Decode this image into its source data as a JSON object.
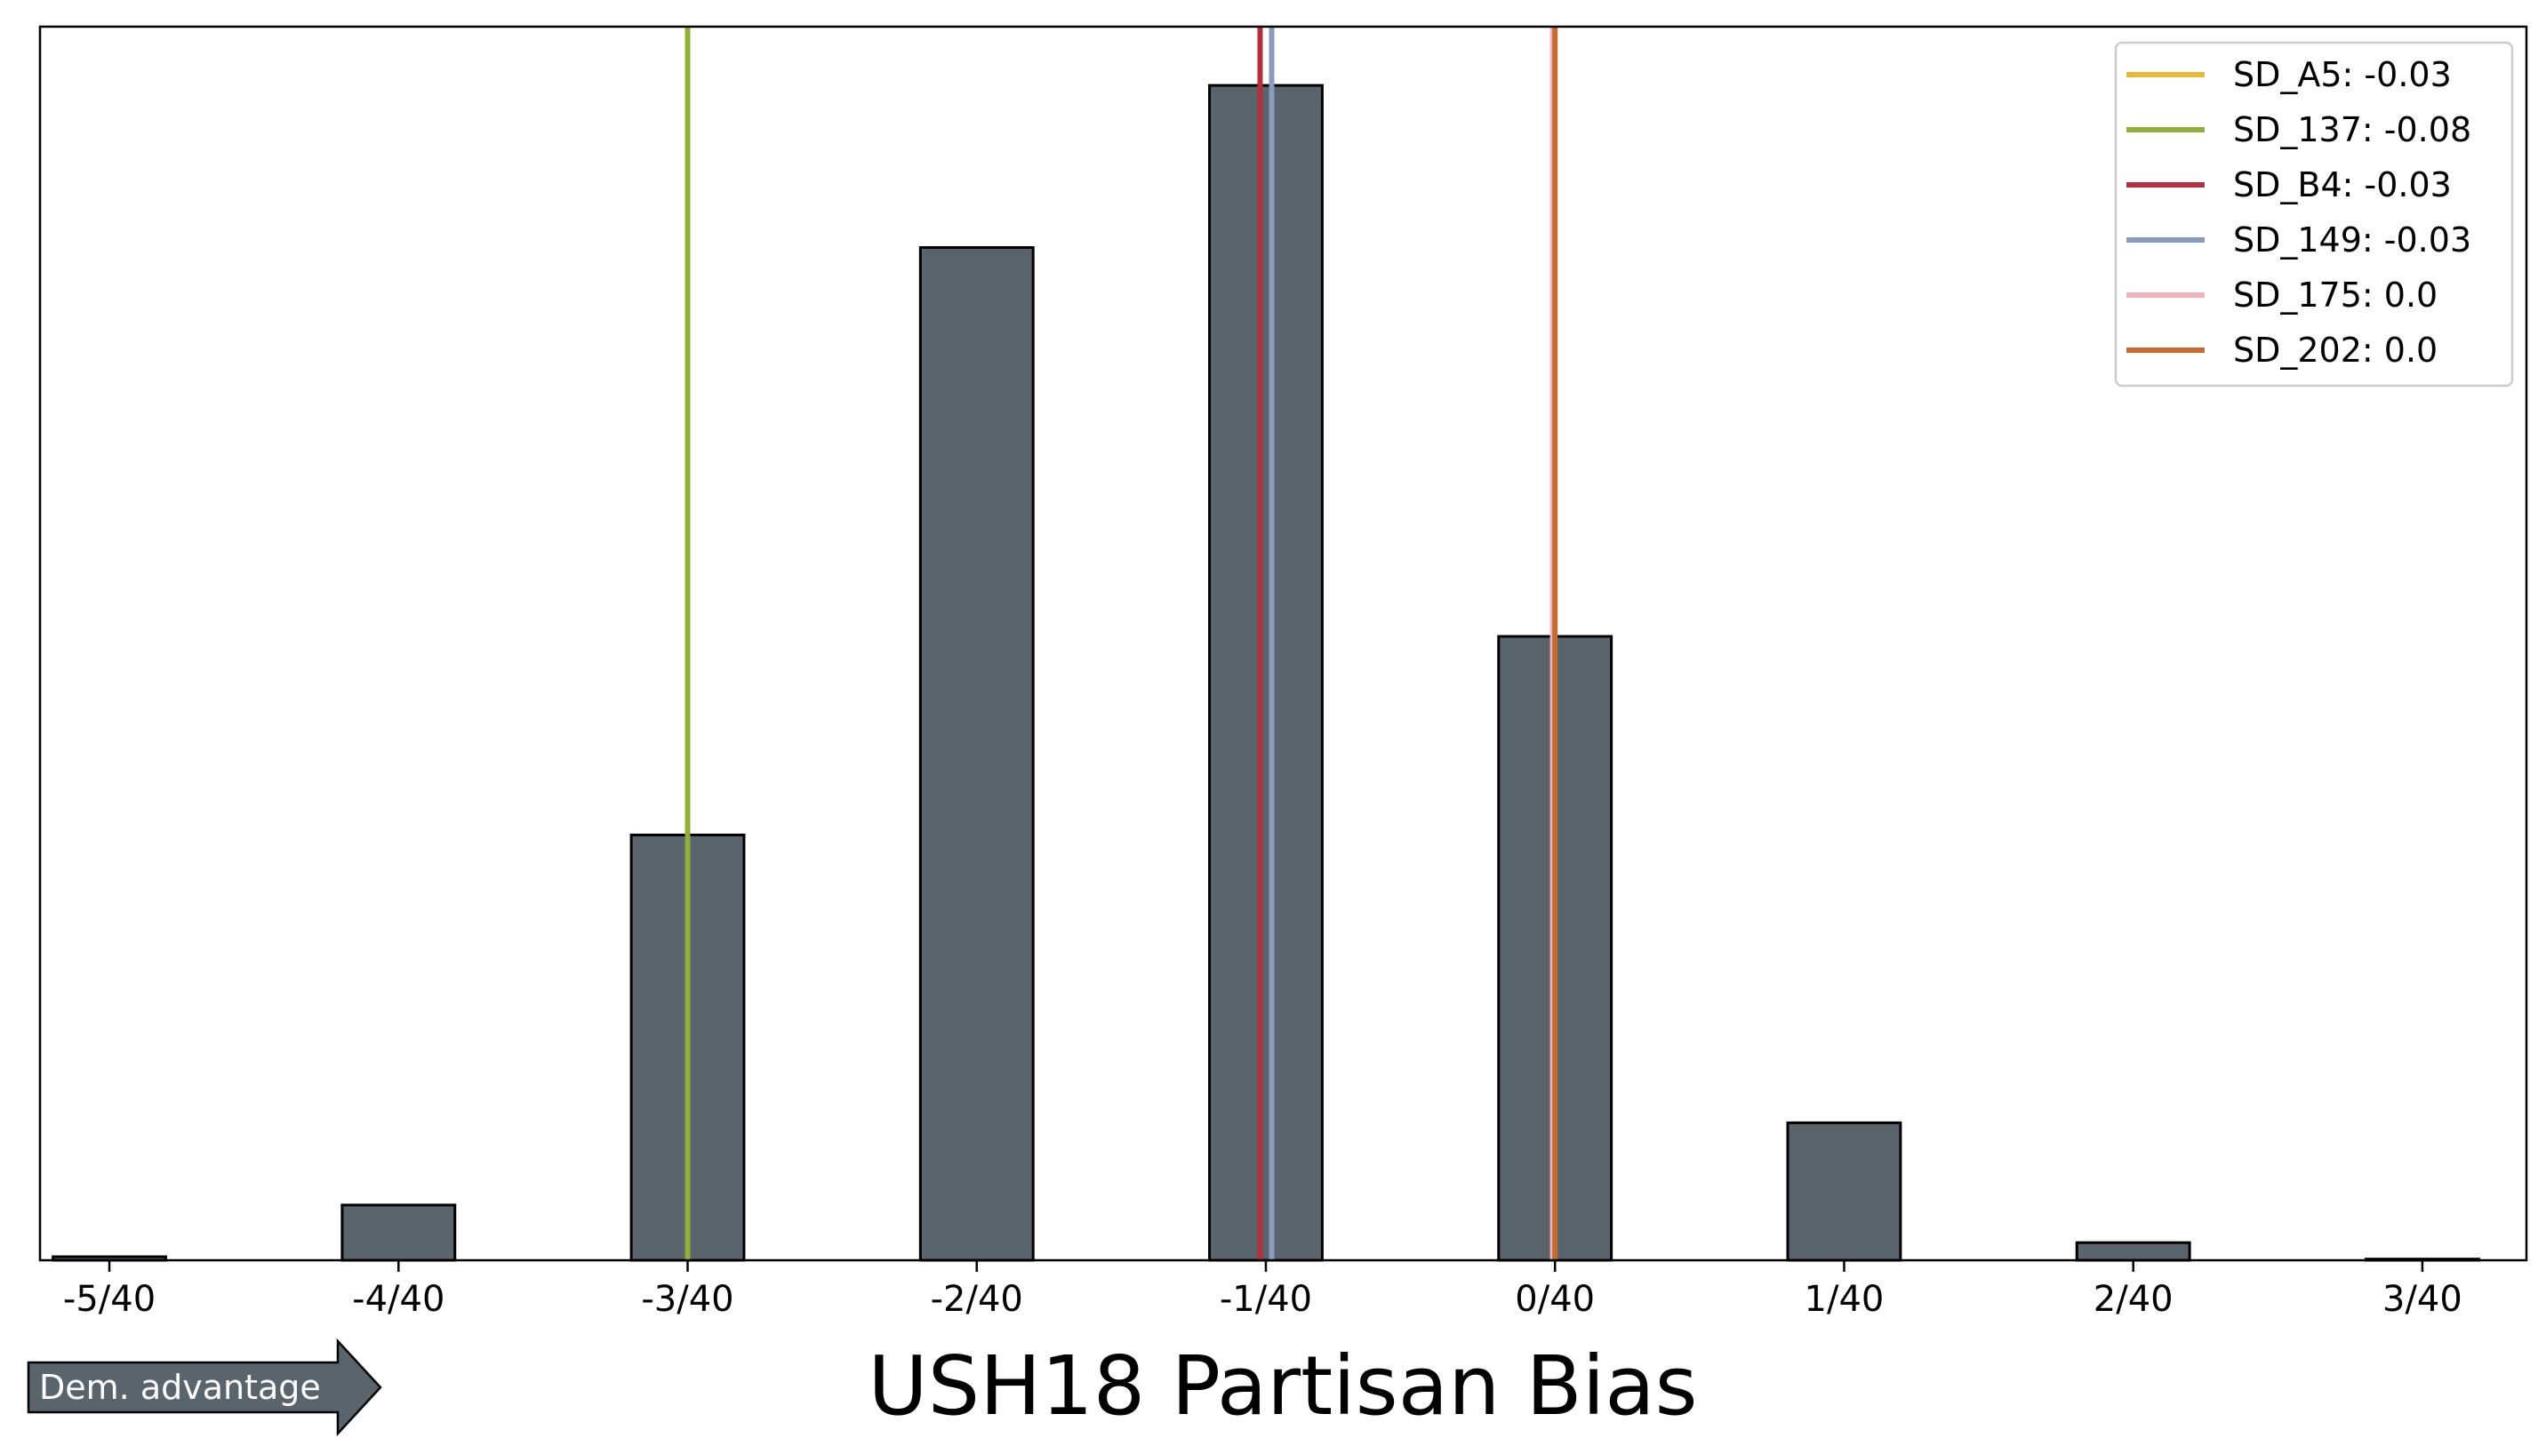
{
  "chart_data": {
    "type": "bar",
    "title": "USH18 Partisan Bias",
    "xlabel": "",
    "ylabel": "",
    "x_ticks": [
      "-5/40",
      "-4/40",
      "-3/40",
      "-2/40",
      "-1/40",
      "0/40",
      "1/40",
      "2/40",
      "3/40"
    ],
    "xlim": [
      -0.131,
      0.084
    ],
    "ylim": [
      0,
      1.05
    ],
    "y_axis_labels_shown": false,
    "grid": false,
    "bar_color": "#5a646c",
    "bars": [
      {
        "x": -0.125,
        "value": 0.003
      },
      {
        "x": -0.1125,
        "value": 0.0
      },
      {
        "x": -0.1,
        "value": 0.047
      },
      {
        "x": -0.0875,
        "value": 0.0
      },
      {
        "x": -0.075,
        "value": 0.362
      },
      {
        "x": -0.0625,
        "value": 0.0
      },
      {
        "x": -0.05,
        "value": 0.862
      },
      {
        "x": -0.0375,
        "value": 0.0
      },
      {
        "x": -0.025,
        "value": 1.0
      },
      {
        "x": -0.0125,
        "value": 0.0
      },
      {
        "x": 0.0,
        "value": 0.531
      },
      {
        "x": 0.0125,
        "value": 0.0
      },
      {
        "x": 0.025,
        "value": 0.117
      },
      {
        "x": 0.0375,
        "value": 0.0
      },
      {
        "x": 0.05,
        "value": 0.015
      },
      {
        "x": 0.0625,
        "value": 0.0
      },
      {
        "x": 0.075,
        "value": 0.001
      }
    ],
    "reference_lines": [
      {
        "label": "SD_A5: -0.03",
        "x": -0.025,
        "color": "#e8b83a",
        "drawn": false
      },
      {
        "label": "SD_137: -0.08",
        "x": -0.075,
        "color": "#93ad3c",
        "drawn": true
      },
      {
        "label": "SD_B4: -0.03",
        "x": -0.0255,
        "color": "#b2303f",
        "drawn": true
      },
      {
        "label": "SD_149: -0.03",
        "x": -0.0245,
        "color": "#8a9bbd",
        "drawn": true
      },
      {
        "label": "SD_175: 0.0",
        "x": -0.0002,
        "color": "#f2b2bb",
        "drawn": true
      },
      {
        "label": "SD_202: 0.0",
        "x": 0.0,
        "color": "#c46b32",
        "drawn": true
      }
    ],
    "legend_position": "top-right"
  },
  "badge": {
    "text": "Dem. advantage",
    "color": "#5a646c"
  }
}
